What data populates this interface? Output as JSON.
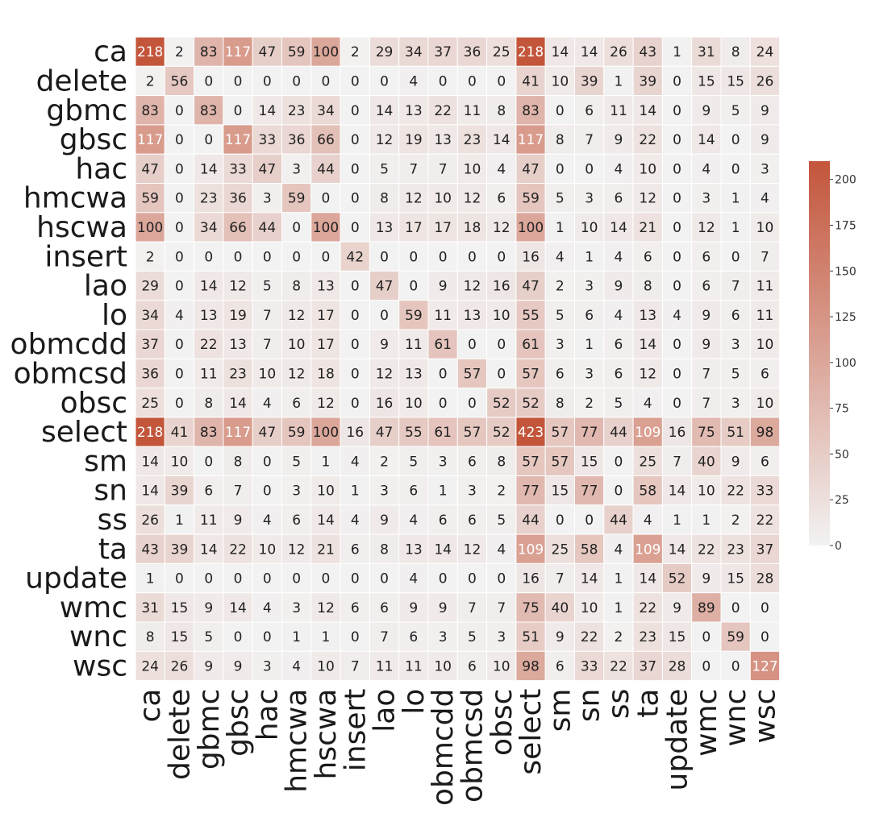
{
  "chart_data": {
    "type": "heatmap",
    "title": "",
    "xlabel": "",
    "ylabel": "",
    "labels": [
      "ca",
      "delete",
      "gbmc",
      "gbsc",
      "hac",
      "hmcwa",
      "hscwa",
      "insert",
      "lao",
      "lo",
      "obmcdd",
      "obmcsd",
      "obsc",
      "select",
      "sm",
      "sn",
      "ss",
      "ta",
      "update",
      "wmc",
      "wnc",
      "wsc"
    ],
    "matrix": [
      [
        218,
        2,
        83,
        117,
        47,
        59,
        100,
        2,
        29,
        34,
        37,
        36,
        25,
        218,
        14,
        14,
        26,
        43,
        1,
        31,
        8,
        24
      ],
      [
        2,
        56,
        0,
        0,
        0,
        0,
        0,
        0,
        0,
        4,
        0,
        0,
        0,
        41,
        10,
        39,
        1,
        39,
        0,
        15,
        15,
        26
      ],
      [
        83,
        0,
        83,
        0,
        14,
        23,
        34,
        0,
        14,
        13,
        22,
        11,
        8,
        83,
        0,
        6,
        11,
        14,
        0,
        9,
        5,
        9
      ],
      [
        117,
        0,
        0,
        117,
        33,
        36,
        66,
        0,
        12,
        19,
        13,
        23,
        14,
        117,
        8,
        7,
        9,
        22,
        0,
        14,
        0,
        9
      ],
      [
        47,
        0,
        14,
        33,
        47,
        3,
        44,
        0,
        5,
        7,
        7,
        10,
        4,
        47,
        0,
        0,
        4,
        10,
        0,
        4,
        0,
        3
      ],
      [
        59,
        0,
        23,
        36,
        3,
        59,
        0,
        0,
        8,
        12,
        10,
        12,
        6,
        59,
        5,
        3,
        6,
        12,
        0,
        3,
        1,
        4
      ],
      [
        100,
        0,
        34,
        66,
        44,
        0,
        100,
        0,
        13,
        17,
        17,
        18,
        12,
        100,
        1,
        10,
        14,
        21,
        0,
        12,
        1,
        10
      ],
      [
        2,
        0,
        0,
        0,
        0,
        0,
        0,
        42,
        0,
        0,
        0,
        0,
        0,
        16,
        4,
        1,
        4,
        6,
        0,
        6,
        0,
        7
      ],
      [
        29,
        0,
        14,
        12,
        5,
        8,
        13,
        0,
        47,
        0,
        9,
        12,
        16,
        47,
        2,
        3,
        9,
        8,
        0,
        6,
        7,
        11
      ],
      [
        34,
        4,
        13,
        19,
        7,
        12,
        17,
        0,
        0,
        59,
        11,
        13,
        10,
        55,
        5,
        6,
        4,
        13,
        4,
        9,
        6,
        11
      ],
      [
        37,
        0,
        22,
        13,
        7,
        10,
        17,
        0,
        9,
        11,
        61,
        0,
        0,
        61,
        3,
        1,
        6,
        14,
        0,
        9,
        3,
        10
      ],
      [
        36,
        0,
        11,
        23,
        10,
        12,
        18,
        0,
        12,
        13,
        0,
        57,
        0,
        57,
        6,
        3,
        6,
        12,
        0,
        7,
        5,
        6
      ],
      [
        25,
        0,
        8,
        14,
        4,
        6,
        12,
        0,
        16,
        10,
        0,
        0,
        52,
        52,
        8,
        2,
        5,
        4,
        0,
        7,
        3,
        10
      ],
      [
        218,
        41,
        83,
        117,
        47,
        59,
        100,
        16,
        47,
        55,
        61,
        57,
        52,
        423,
        57,
        77,
        44,
        109,
        16,
        75,
        51,
        98
      ],
      [
        14,
        10,
        0,
        8,
        0,
        5,
        1,
        4,
        2,
        5,
        3,
        6,
        8,
        57,
        57,
        15,
        0,
        25,
        7,
        40,
        9,
        6
      ],
      [
        14,
        39,
        6,
        7,
        0,
        3,
        10,
        1,
        3,
        6,
        1,
        3,
        2,
        77,
        15,
        77,
        0,
        58,
        14,
        10,
        22,
        33
      ],
      [
        26,
        1,
        11,
        9,
        4,
        6,
        14,
        4,
        9,
        4,
        6,
        6,
        5,
        44,
        0,
        0,
        44,
        4,
        1,
        1,
        2,
        22
      ],
      [
        43,
        39,
        14,
        22,
        10,
        12,
        21,
        6,
        8,
        13,
        14,
        12,
        4,
        109,
        25,
        58,
        4,
        109,
        14,
        22,
        23,
        37
      ],
      [
        1,
        0,
        0,
        0,
        0,
        0,
        0,
        0,
        0,
        4,
        0,
        0,
        0,
        16,
        7,
        14,
        1,
        14,
        52,
        9,
        15,
        28
      ],
      [
        31,
        15,
        9,
        14,
        4,
        3,
        12,
        6,
        6,
        9,
        9,
        7,
        7,
        75,
        40,
        10,
        1,
        22,
        9,
        89,
        0,
        0
      ],
      [
        8,
        15,
        5,
        0,
        0,
        1,
        1,
        0,
        7,
        6,
        3,
        5,
        3,
        51,
        9,
        22,
        2,
        23,
        15,
        0,
        59,
        0
      ],
      [
        24,
        26,
        9,
        9,
        3,
        4,
        10,
        7,
        11,
        11,
        10,
        6,
        10,
        98,
        6,
        33,
        22,
        37,
        28,
        0,
        0,
        127
      ]
    ],
    "colorbar": {
      "min": 0,
      "max": 210,
      "ticks": [
        0,
        25,
        50,
        75,
        100,
        125,
        150,
        175,
        200
      ],
      "color_low": "#f2f2f2",
      "color_high": "#c3553b"
    },
    "grid": false,
    "legend": "colorbar right"
  }
}
